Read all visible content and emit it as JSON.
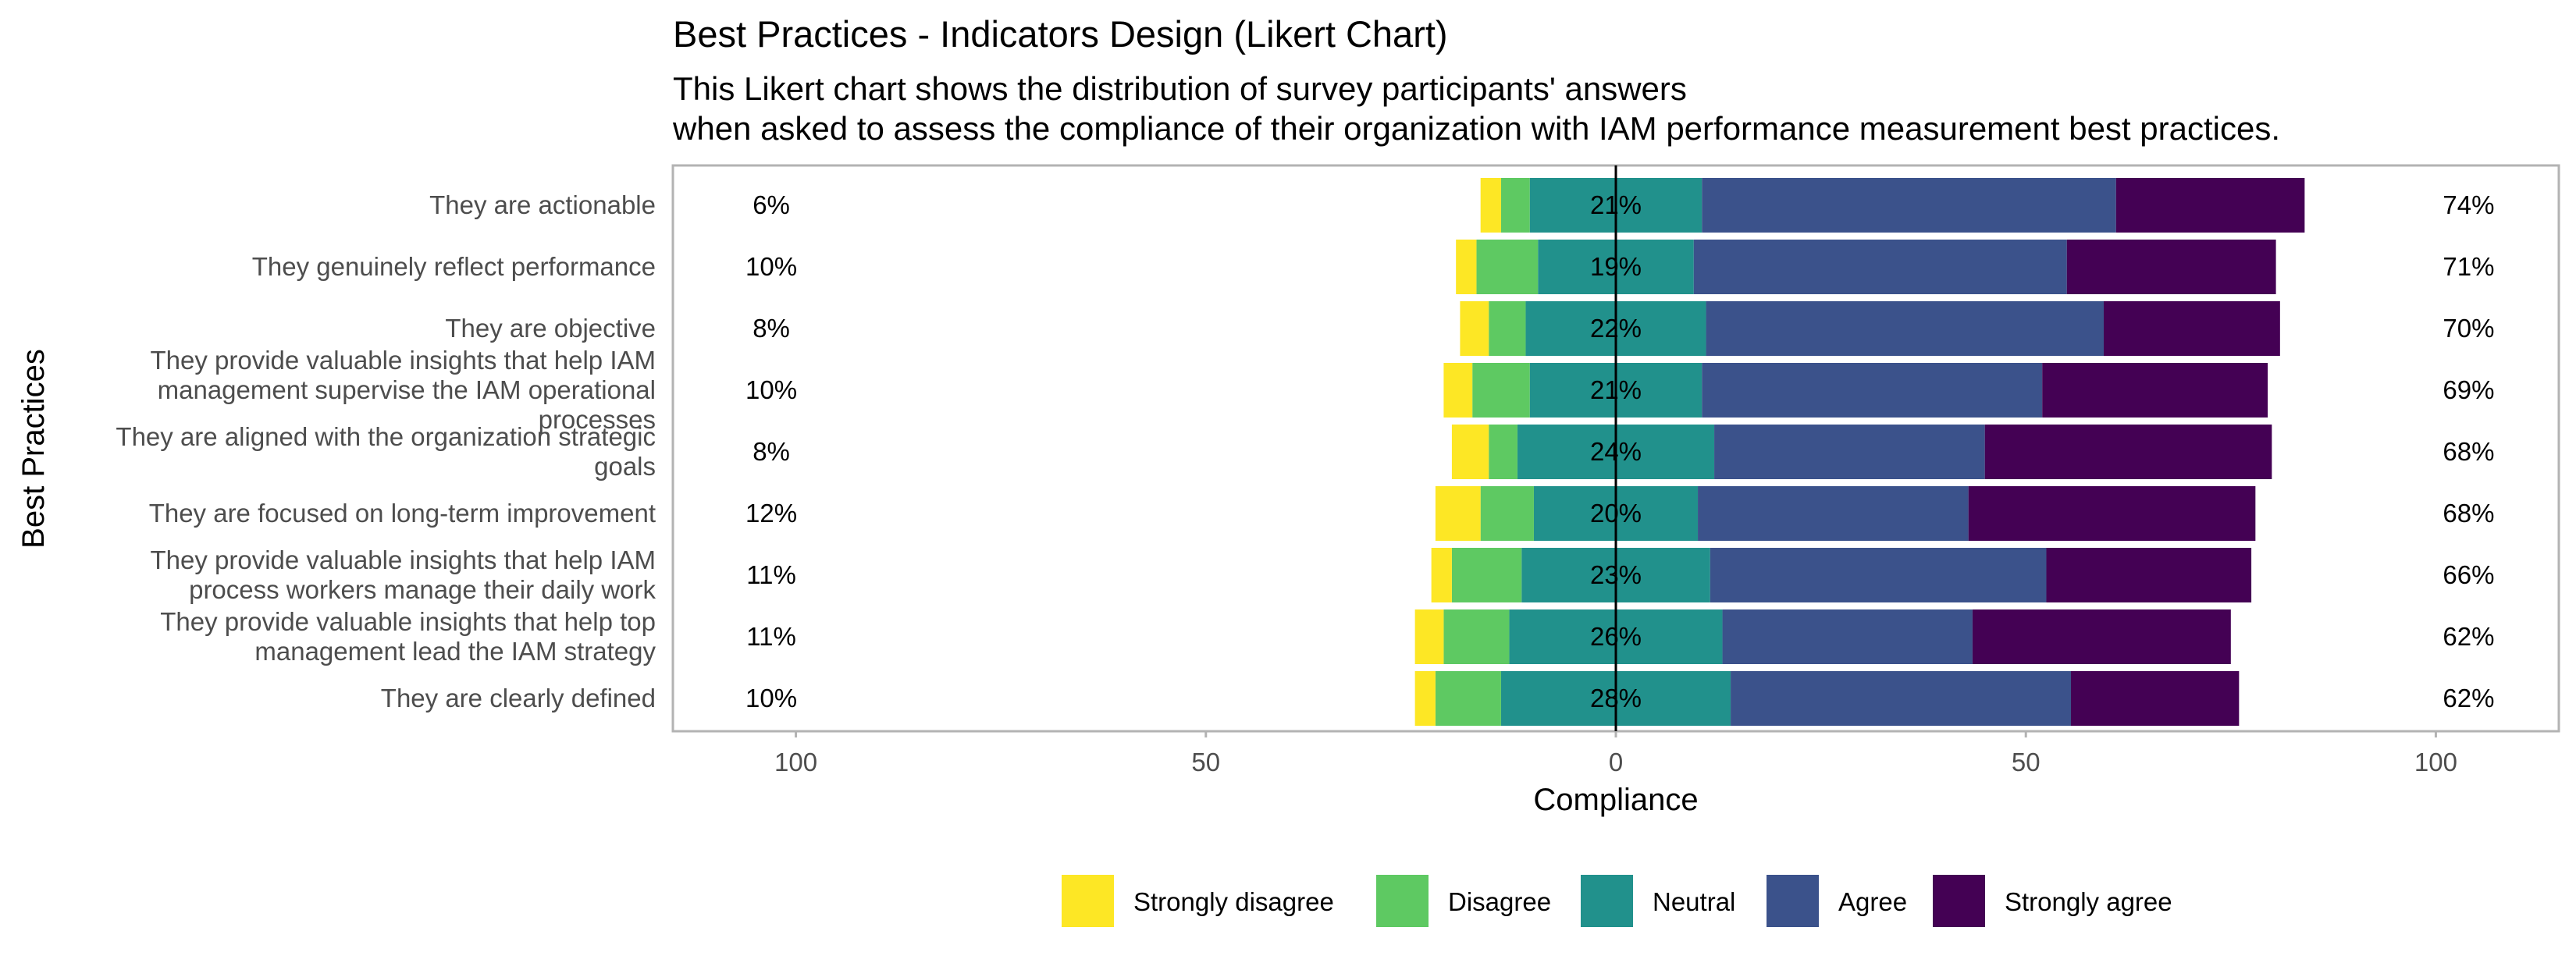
{
  "chart_data": {
    "type": "bar",
    "orientation": "horizontal-diverging",
    "title": "Best Practices - Indicators Design (Likert Chart)",
    "subtitle": [
      "This Likert chart shows the distribution of survey participants' answers",
      "when asked to assess the compliance of their organization with IAM performance measurement best practices."
    ],
    "xlabel": "Compliance",
    "ylabel": "Best Practices",
    "xlim": [
      -115,
      115
    ],
    "xticks": [
      -100,
      -50,
      0,
      50,
      100
    ],
    "xtick_labels": [
      "100",
      "50",
      "0",
      "50",
      "100"
    ],
    "grid": false,
    "legend_position": "bottom",
    "legend": [
      {
        "name": "Strongly disagree",
        "color": "#FDE725"
      },
      {
        "name": "Disagree",
        "color": "#5EC962"
      },
      {
        "name": "Neutral",
        "color": "#21918C"
      },
      {
        "name": "Agree",
        "color": "#3B528B"
      },
      {
        "name": "Strongly agree",
        "color": "#440154"
      }
    ],
    "categories": [
      [
        "They are actionable"
      ],
      [
        "They genuinely reflect performance"
      ],
      [
        "They are objective"
      ],
      [
        "They provide valuable insights that help IAM",
        "management supervise the IAM operational",
        "processes"
      ],
      [
        "They are aligned with the organization strategic",
        "goals"
      ],
      [
        "They are focused on long-term improvement"
      ],
      [
        "They provide valuable insights that help IAM",
        "process workers manage their daily work"
      ],
      [
        "They provide valuable insights that help top",
        "management lead the IAM strategy"
      ],
      [
        "They are clearly defined"
      ]
    ],
    "series": [
      {
        "name": "Strongly disagree",
        "values": [
          2.5,
          2.5,
          3.5,
          3.5,
          4.5,
          5.5,
          2.5,
          3.5,
          2.5
        ]
      },
      {
        "name": "Disagree",
        "values": [
          3.5,
          7.5,
          4.5,
          7,
          3.5,
          6.5,
          8.5,
          8,
          8
        ]
      },
      {
        "name": "Neutral",
        "values": [
          21,
          19,
          22,
          21,
          24,
          20,
          23,
          26,
          28
        ]
      },
      {
        "name": "Agree",
        "values": [
          50.5,
          45.5,
          48.5,
          41.5,
          33,
          33,
          41,
          30.5,
          41.5
        ]
      },
      {
        "name": "Strongly agree",
        "values": [
          23,
          25.5,
          21.5,
          27.5,
          35,
          35,
          25,
          31.5,
          20.5
        ]
      }
    ],
    "negative_labels": [
      "6%",
      "10%",
      "8%",
      "10%",
      "8%",
      "12%",
      "11%",
      "11%",
      "10%"
    ],
    "neutral_labels": [
      "21%",
      "19%",
      "22%",
      "21%",
      "24%",
      "20%",
      "23%",
      "26%",
      "28%"
    ],
    "positive_labels": [
      "74%",
      "71%",
      "70%",
      "69%",
      "68%",
      "68%",
      "66%",
      "62%",
      "62%"
    ]
  }
}
